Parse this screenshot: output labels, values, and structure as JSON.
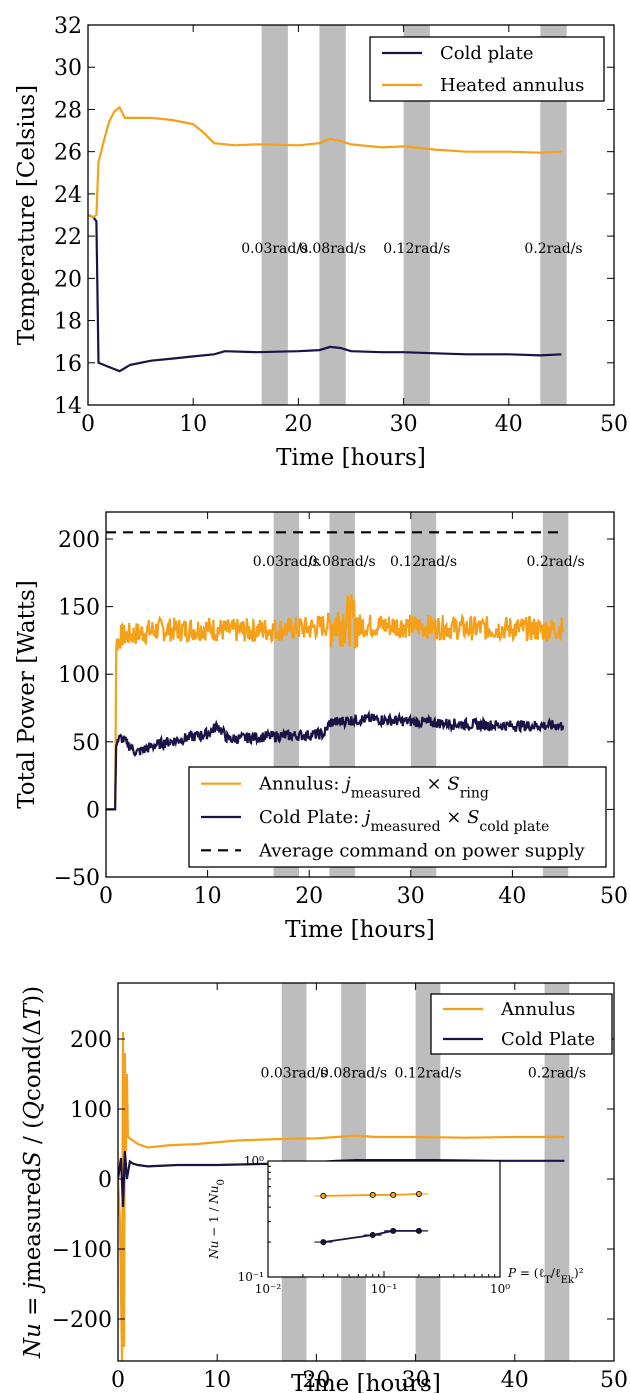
{
  "chart_data": [
    {
      "type": "line",
      "xlabel": "Time [hours]",
      "ylabel": "Temperature [Celsius]",
      "xlim": [
        0,
        50
      ],
      "ylim": [
        14,
        32
      ],
      "xticks": [
        "0",
        "10",
        "20",
        "30",
        "40",
        "50"
      ],
      "yticks": [
        "14",
        "16",
        "18",
        "20",
        "22",
        "24",
        "26",
        "28",
        "30",
        "32"
      ],
      "legend_position": "top-right",
      "shaded_bands": [
        {
          "x": [
            16.5,
            19
          ],
          "label": "0.03rad/s"
        },
        {
          "x": [
            22,
            24.5
          ],
          "label": "0.08rad/s"
        },
        {
          "x": [
            30,
            32.5
          ],
          "label": "0.12rad/s"
        },
        {
          "x": [
            43,
            45.5
          ],
          "label": "0.2rad/s"
        }
      ],
      "band_label_y": 21.2,
      "series": [
        {
          "name": "Cold plate",
          "color": "#1b1245",
          "x": [
            0,
            0.5,
            0.8,
            1.0,
            1.5,
            2,
            3,
            4,
            6,
            8,
            10,
            12,
            13,
            16,
            20,
            22,
            23,
            24,
            25,
            28,
            30,
            33,
            36,
            40,
            43,
            45
          ],
          "y": [
            23,
            22.9,
            22.7,
            16.0,
            15.9,
            15.8,
            15.6,
            15.9,
            16.1,
            16.2,
            16.3,
            16.4,
            16.55,
            16.5,
            16.55,
            16.6,
            16.75,
            16.7,
            16.55,
            16.5,
            16.5,
            16.45,
            16.4,
            16.4,
            16.35,
            16.4
          ]
        },
        {
          "name": "Heated annulus",
          "color": "#f5a01a",
          "x": [
            0,
            0.5,
            0.8,
            1.0,
            1.5,
            2,
            2.5,
            3,
            3.5,
            4,
            6,
            8,
            10,
            11,
            12,
            14,
            16,
            20,
            22,
            23,
            24,
            25,
            28,
            30,
            33,
            36,
            40,
            43,
            45
          ],
          "y": [
            23,
            22.9,
            23.0,
            25.5,
            26.5,
            27.4,
            27.9,
            28.1,
            27.6,
            27.6,
            27.6,
            27.5,
            27.3,
            26.9,
            26.4,
            26.3,
            26.35,
            26.3,
            26.4,
            26.6,
            26.5,
            26.35,
            26.2,
            26.25,
            26.1,
            26.0,
            26.0,
            25.95,
            26.0
          ]
        }
      ]
    },
    {
      "type": "line",
      "xlabel": "Time [hours]",
      "ylabel": "Total Power [Watts]",
      "xlim": [
        0,
        50
      ],
      "ylim": [
        -50,
        220
      ],
      "xticks": [
        "0",
        "10",
        "20",
        "30",
        "40",
        "50"
      ],
      "yticks": [
        "−50",
        "0",
        "50",
        "100",
        "150",
        "200"
      ],
      "legend_position": "lower-right",
      "shaded_bands": [
        {
          "x": [
            16.5,
            19
          ],
          "label": "0.03rad/s"
        },
        {
          "x": [
            22,
            24.5
          ],
          "label": "0.08rad/s"
        },
        {
          "x": [
            30,
            32.5
          ],
          "label": "0.12rad/s"
        },
        {
          "x": [
            43,
            45.5
          ],
          "label": "0.2rad/s"
        }
      ],
      "band_label_y": 180,
      "series": [
        {
          "name": "Annulus: j_measured × S_ring",
          "legend_html": "Annulus: <tspan class='it'>j</tspan><tspan baseline-shift='sub' font-size='14'>measured</tspan> × <tspan class='it'>S</tspan><tspan baseline-shift='sub' font-size='14'>ring</tspan>",
          "color": "#f5a01a",
          "noise": 9,
          "x": [
            0,
            0.9,
            1.0,
            1.5,
            3,
            5,
            8,
            10,
            12,
            16,
            20,
            22,
            23,
            24,
            25,
            28,
            32,
            36,
            40,
            43,
            45
          ],
          "y": [
            0,
            0,
            122,
            128,
            130,
            133,
            133,
            134,
            132,
            133,
            134,
            137,
            140,
            140,
            136,
            136,
            135,
            134,
            134,
            133,
            134
          ]
        },
        {
          "name": "Cold Plate: j_measured × S_cold plate",
          "legend_html": "Cold Plate: <tspan class='it'>j</tspan><tspan baseline-shift='sub' font-size='14'>measured</tspan> × <tspan class='it'>S</tspan><tspan baseline-shift='sub' font-size='14'>cold plate</tspan>",
          "color": "#1b1245",
          "noise": 4,
          "x": [
            0,
            0.9,
            1.0,
            1.5,
            3,
            5,
            8,
            10,
            11,
            12,
            14,
            16,
            20,
            21.5,
            22,
            24,
            26,
            30,
            35,
            40,
            45
          ],
          "y": [
            0,
            0,
            50,
            53,
            42,
            48,
            53,
            56,
            62,
            52,
            53,
            54,
            55,
            56,
            64,
            66,
            67,
            65,
            63,
            62,
            62
          ]
        },
        {
          "name": "Average command on power supply",
          "color": "#000000",
          "dashed": true,
          "x": [
            0,
            45
          ],
          "y": [
            205,
            205
          ]
        }
      ]
    },
    {
      "type": "line",
      "xlabel": "Time [hours]",
      "ylabel_html": "<tspan class='it'>Nu</tspan> = <tspan class='it'>j</tspan>measured<tspan class='it'>S</tspan> / (<tspan class='it'>Q</tspan>cond(Δ<tspan class='it'>T</tspan>))",
      "xlim": [
        0,
        50
      ],
      "ylim": [
        -260,
        280
      ],
      "xticks": [
        "0",
        "10",
        "20",
        "30",
        "40",
        "50"
      ],
      "yticks": [
        "−200",
        "−100",
        "0",
        "100",
        "200"
      ],
      "legend_position": "top-right",
      "shaded_bands": [
        {
          "x": [
            16.5,
            19
          ],
          "label": "0.03rad/s"
        },
        {
          "x": [
            22.5,
            25
          ],
          "label": "0.08rad/s"
        },
        {
          "x": [
            30,
            32.5
          ],
          "label": "0.12rad/s"
        },
        {
          "x": [
            43,
            45.5
          ],
          "label": "0.2rad/s"
        }
      ],
      "band_label_y": 145,
      "series": [
        {
          "name": "Annulus",
          "color": "#f5a01a",
          "x": [
            0,
            0.2,
            0.4,
            0.5,
            0.6,
            0.7,
            0.8,
            0.9,
            1.0,
            1.5,
            2,
            3,
            5,
            8,
            12,
            16,
            20,
            22,
            24,
            26,
            30,
            35,
            40,
            45
          ],
          "y": [
            0,
            -60,
            -260,
            210,
            -240,
            180,
            40,
            150,
            60,
            55,
            50,
            45,
            48,
            50,
            55,
            57,
            58,
            60,
            62,
            60,
            60,
            59,
            60,
            60
          ]
        },
        {
          "name": "Cold Plate",
          "color": "#1b1245",
          "x": [
            0,
            0.3,
            0.5,
            0.7,
            0.9,
            1.2,
            1.5,
            2,
            3,
            6,
            10,
            16,
            20,
            22,
            24,
            28,
            32,
            38,
            45
          ],
          "y": [
            0,
            30,
            -40,
            40,
            0,
            25,
            22,
            20,
            18,
            20,
            20,
            22,
            24,
            26,
            27,
            27,
            27,
            26,
            26
          ]
        }
      ],
      "inset": {
        "type": "scatter",
        "xscale": "log",
        "yscale": "log",
        "xlim": [
          0.01,
          1
        ],
        "ylim": [
          0.1,
          1
        ],
        "xticks": [
          "10⁻²",
          "10⁻¹",
          "10⁰"
        ],
        "yticks": [
          "10⁻¹",
          "10⁰"
        ],
        "ylabel_html": "<tspan class='it'>Nu</tspan> − 1 / <tspan class='it'>Nu</tspan><tspan baseline-shift='sub' font-size='10'>0</tspan>",
        "xlabel_html": "<tspan class='it'>P</tspan> = (ℓ<tspan baseline-shift='sub' font-size='10'>T</tspan>/ℓ<tspan baseline-shift='sub' font-size='10'>Ek</tspan>)²",
        "series": [
          {
            "color": "#f5a01a",
            "x": [
              0.03,
              0.08,
              0.12,
              0.2
            ],
            "y": [
              0.5,
              0.51,
              0.51,
              0.52
            ]
          },
          {
            "color": "#1b1245",
            "x": [
              0.03,
              0.08,
              0.12,
              0.2
            ],
            "y": [
              0.2,
              0.23,
              0.25,
              0.25
            ]
          }
        ]
      }
    }
  ]
}
